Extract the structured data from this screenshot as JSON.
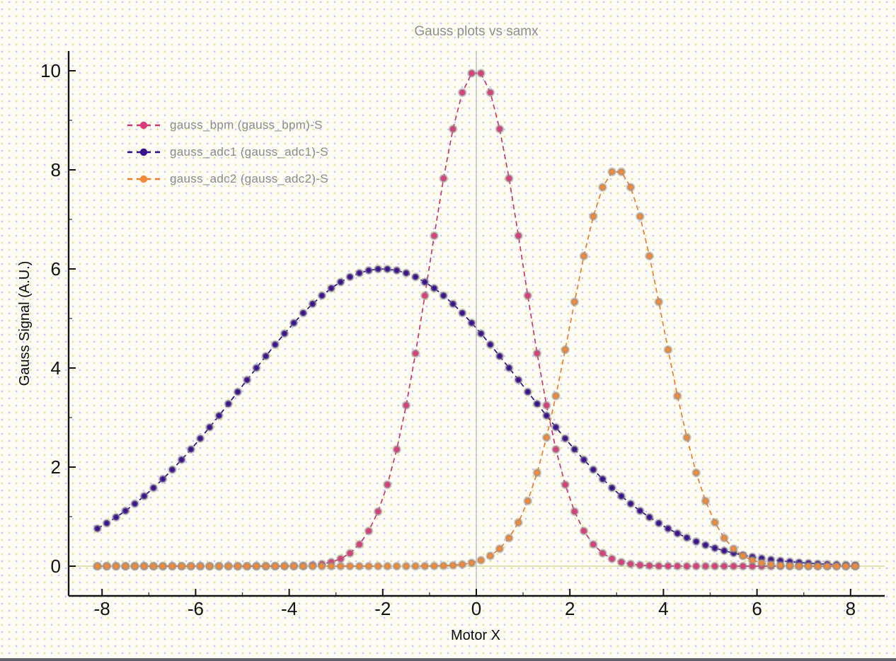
{
  "window": {
    "bottom_border_color": "#62626a"
  },
  "style": {
    "background_color": "#fcfcf5",
    "dot_grid_yellow": "#e8e39a",
    "dot_grid_lavender": "#cac9ec",
    "axis_color": "#141414",
    "tick_label_color": "#111111",
    "title_color": "#8f8f8f",
    "axis_label_color": "#0a0a0a",
    "legend_text_color": "#8b8b8b",
    "marker_halo_color": "#8c8c8c",
    "zero_line_color": "#d8d89e",
    "crosshair_color": "#c2c2c2"
  },
  "chart_data": {
    "type": "line",
    "title": "Gauss plots vs samx",
    "xlabel": "Motor X",
    "ylabel": "Gauss Signal (A.U.)",
    "xlim": [
      -8.72,
      8.73
    ],
    "ylim": [
      -0.6,
      10.4
    ],
    "x_major_ticks": [
      -8,
      -6,
      -4,
      -2,
      0,
      2,
      4,
      6,
      8
    ],
    "x_minor_ticks": [
      -7,
      -5,
      -3,
      -1,
      1,
      3,
      5,
      7
    ],
    "y_major_ticks": [
      0,
      2,
      4,
      6,
      8,
      10
    ],
    "y_minor_ticks": [
      1,
      3,
      5,
      7,
      9
    ],
    "grid": false,
    "legend_position": "upper-left",
    "line_style": "dashed",
    "marker": "circle",
    "sampling": {
      "x_start": -8.1,
      "x_stop": 8.1,
      "step": 0.2,
      "n_points": 82
    },
    "reference_lines": {
      "vertical_x": 0,
      "horizontal_y": 0
    },
    "series": [
      {
        "name": "gauss_bpm (gauss_bpm)-S",
        "model": "gaussian",
        "amplitude": 10,
        "center": 0,
        "sigma": 1.0,
        "peak_xy": [
          0,
          10
        ],
        "line_color": "#c9366e",
        "marker_color": "#da3d78"
      },
      {
        "name": "gauss_adc1 (gauss_adc1)-S",
        "model": "gaussian",
        "amplitude": 6,
        "center": -2,
        "sigma": 3.0,
        "peak_xy": [
          -2,
          6
        ],
        "line_color": "#2c0d87",
        "marker_color": "#39128c"
      },
      {
        "name": "gauss_adc2 (gauss_adc2)-S",
        "model": "gaussian",
        "amplitude": 8,
        "center": 3,
        "sigma": 1.0,
        "peak_xy": [
          3,
          8
        ],
        "line_color": "#ed7d2d",
        "marker_color": "#f18a39"
      }
    ]
  }
}
